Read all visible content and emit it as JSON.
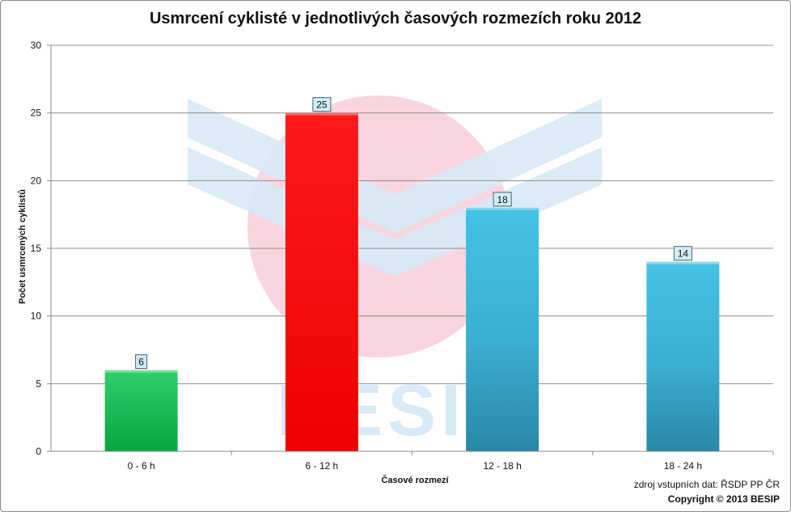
{
  "chart_data": {
    "type": "bar",
    "title": "Usmrcení cyklisté v jednotlivých časových rozmezích roku 2012",
    "xlabel": "Časové rozmezí",
    "ylabel": "Počet usmrcených cyklistů",
    "categories": [
      "0 - 6 h",
      "6 - 12 h",
      "12 - 18 h",
      "18 - 24 h"
    ],
    "values": [
      6,
      25,
      18,
      14
    ],
    "bar_colors": [
      "#0fb84e",
      "#ff0000",
      "#3bb6dc",
      "#3bb6dc"
    ],
    "ylim": [
      0,
      30
    ],
    "yticks": [
      0,
      5,
      10,
      15,
      20,
      25,
      30
    ],
    "grid": true,
    "data_labels": true
  },
  "watermark": {
    "text": "BESIP",
    "colors": {
      "circle": "#f9d6df",
      "chevron": "#d8eaf6",
      "text": "#d8eaf6"
    }
  },
  "footer": {
    "source": "zdroj vstupních dat: ŘSDP PP ČR",
    "copyright": "Copyright © 2013 BESIP"
  }
}
